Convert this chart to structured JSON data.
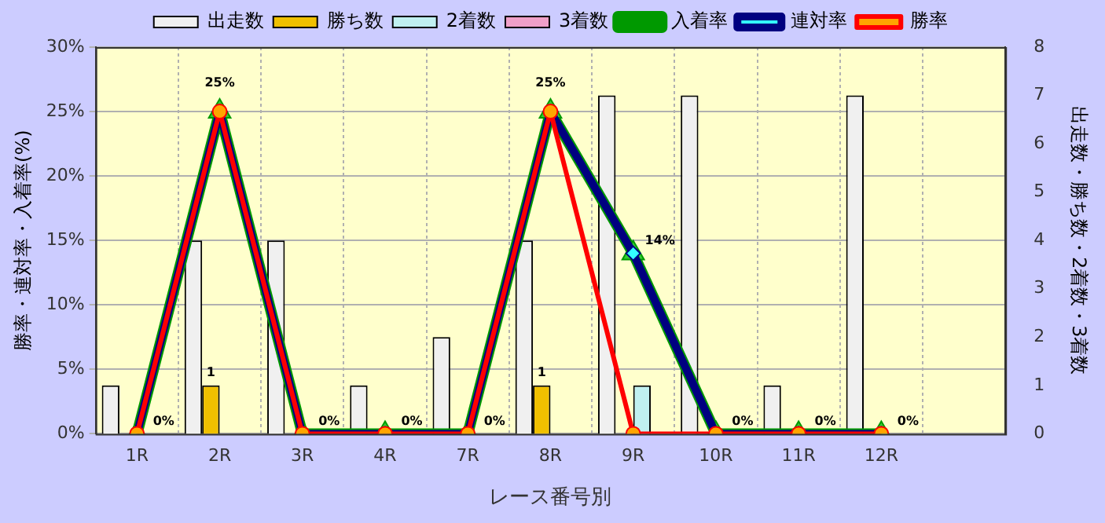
{
  "chart_data": {
    "type": "bar",
    "xlabel": "レース番号別",
    "ylabel": "勝率・連対率・入着率(%)",
    "y2label": "出走数・勝ち数・2着数・3着数",
    "categories": [
      "1R",
      "2R",
      "3R",
      "4R",
      "7R",
      "8R",
      "9R",
      "10R",
      "11R",
      "12R",
      null
    ],
    "series": [
      {
        "name": "出走数",
        "axis": "y2",
        "color": "#f0f0f0",
        "values": [
          1,
          4,
          4,
          1,
          2,
          4,
          7,
          7,
          1,
          7,
          null
        ]
      },
      {
        "name": "勝ち数",
        "axis": "y2",
        "color": "#f0c000",
        "values": [
          0,
          1,
          0,
          0,
          0,
          1,
          0,
          0,
          0,
          0,
          null
        ],
        "value_labels": [
          null,
          "1",
          null,
          null,
          null,
          "1",
          null,
          null,
          null,
          null,
          null
        ]
      },
      {
        "name": "2着数",
        "axis": "y2",
        "color": "#c0f0f0",
        "values": [
          0,
          0,
          0,
          0,
          0,
          0,
          1,
          0,
          0,
          0,
          null
        ]
      },
      {
        "name": "3着数",
        "axis": "y2",
        "color": "#f0a0c8",
        "values": [
          0,
          0,
          0,
          0,
          0,
          0,
          0,
          0,
          0,
          0,
          null
        ]
      },
      {
        "name": "入着率",
        "type": "line",
        "axis": "y",
        "color": "#009900",
        "marker": "triangle",
        "values": [
          0,
          25,
          0,
          0,
          0,
          25,
          14,
          0,
          0,
          0,
          null
        ],
        "value_labels": [
          "0%",
          "25%",
          "0%",
          "0%",
          "0%",
          "25%",
          "14%",
          "0%",
          "0%",
          "0%",
          null
        ]
      },
      {
        "name": "連対率",
        "type": "line",
        "axis": "y",
        "color": "#000080",
        "marker": "diamond",
        "values": [
          0,
          25,
          0,
          0,
          0,
          25,
          14,
          0,
          0,
          0,
          null
        ]
      },
      {
        "name": "勝率",
        "type": "line",
        "axis": "y",
        "color": "#ff0000",
        "marker": "circle",
        "values": [
          0,
          25,
          0,
          0,
          0,
          25,
          0,
          0,
          0,
          0,
          null
        ]
      }
    ],
    "ylim": [
      0,
      30
    ],
    "yticks": [
      {
        "value": 0,
        "label": "0%"
      },
      {
        "value": 5,
        "label": "5%"
      },
      {
        "value": 10,
        "label": "10%"
      },
      {
        "value": 15,
        "label": "15%"
      },
      {
        "value": 20,
        "label": "20%"
      },
      {
        "value": 25,
        "label": "25%"
      },
      {
        "value": 30,
        "label": "30%"
      }
    ],
    "y2lim": [
      0,
      8
    ],
    "y2ticks": [
      0,
      1,
      2,
      3,
      4,
      5,
      6,
      7,
      8
    ],
    "grid": true,
    "legend": "top"
  }
}
